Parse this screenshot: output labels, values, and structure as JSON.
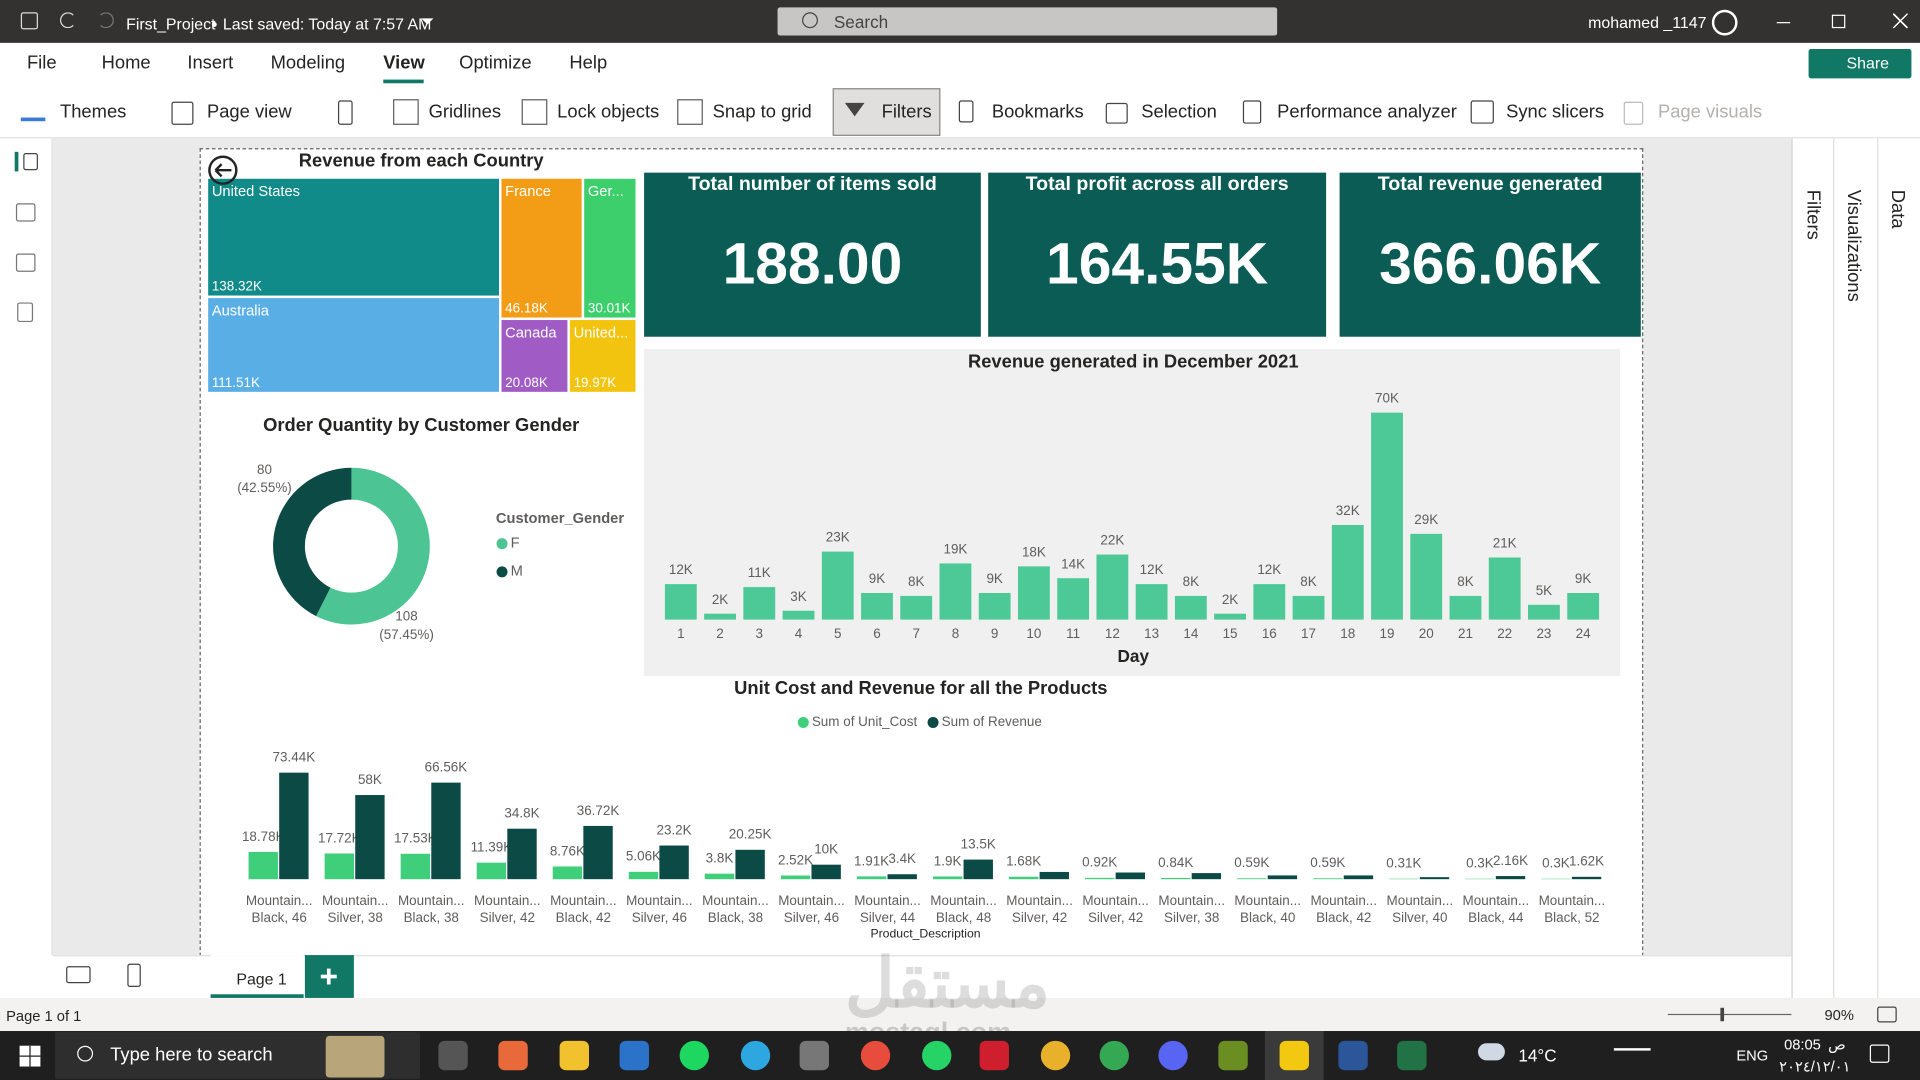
{
  "app": {
    "file_name": "First_Project",
    "last_saved": "Last saved: Today at 7:57 AM",
    "search": "Search",
    "user": "mohamed _1147",
    "menu": [
      "File",
      "Home",
      "Insert",
      "Modeling",
      "View",
      "Optimize",
      "Help"
    ],
    "share": "Share",
    "ribbon": [
      "Themes",
      "Page view",
      "Gridlines",
      "Lock objects",
      "Snap to grid",
      "Filters",
      "Bookmarks",
      "Selection",
      "Performance analyzer",
      "Sync slicers",
      "Page visuals"
    ],
    "panes": [
      "Filters",
      "Visualizations",
      "Data"
    ],
    "page_tab": "Page 1",
    "status": "Page 1 of 1",
    "zoom": "90%",
    "taskbar": {
      "search": "Type here to search",
      "weather": "14°C",
      "language": "ENG",
      "time": "08:05",
      "am_pm": "ص",
      "date": "٢٠٢٤/١٢/٠١"
    },
    "watermark": [
      "مستقل",
      "mostaql.com"
    ]
  },
  "chart_data": [
    {
      "type": "treemap",
      "title": "Revenue from each Country",
      "categories": [
        "United States",
        "Australia",
        "France",
        "Ger...",
        "Canada",
        "United..."
      ],
      "values": [
        138320,
        111510,
        46180,
        30010,
        20080,
        19970
      ],
      "value_labels": [
        "138.32K",
        "111.51K",
        "46.18K",
        "30.01K",
        "20.08K",
        "19.97K"
      ],
      "colors": [
        "#118b8a",
        "#5aaee6",
        "#f39c16",
        "#3ccf6c",
        "#a05cc4",
        "#f2c40f"
      ]
    },
    {
      "type": "card",
      "title": "Total number of items sold",
      "values": [
        188
      ],
      "value_labels": [
        "188.00"
      ],
      "color": "#0b5c55"
    },
    {
      "type": "card",
      "title": "Total profit across all orders",
      "values": [
        164550
      ],
      "value_labels": [
        "164.55K"
      ],
      "color": "#0b5c55"
    },
    {
      "type": "card",
      "title": "Total revenue generated",
      "values": [
        366060
      ],
      "value_labels": [
        "366.06K"
      ],
      "color": "#0b5c55"
    },
    {
      "type": "donut",
      "title": "Order Quantity by Customer Gender",
      "legend_title": "Customer_Gender",
      "categories": [
        "F",
        "M"
      ],
      "values": [
        108,
        80
      ],
      "percent_labels": [
        "(57.45%)",
        "(42.55%)"
      ],
      "colors": [
        "#4cc493",
        "#0b4a45"
      ]
    },
    {
      "type": "bar",
      "title": "Revenue generated in December 2021",
      "x_label": "Day",
      "categories": [
        "1",
        "2",
        "3",
        "4",
        "5",
        "6",
        "7",
        "8",
        "9",
        "10",
        "11",
        "12",
        "13",
        "14",
        "15",
        "16",
        "17",
        "18",
        "19",
        "20",
        "21",
        "22",
        "23",
        "24"
      ],
      "values": [
        12000,
        2000,
        11000,
        3000,
        23000,
        9000,
        8000,
        19000,
        9000,
        18000,
        14000,
        22000,
        12000,
        8000,
        2000,
        12000,
        8000,
        32000,
        70000,
        29000,
        8000,
        21000,
        5000,
        9000
      ],
      "value_labels": [
        "12K",
        "2K",
        "11K",
        "3K",
        "23K",
        "9K",
        "8K",
        "19K",
        "9K",
        "18K",
        "14K",
        "22K",
        "12K",
        "8K",
        "2K",
        "12K",
        "8K",
        "32K",
        "70K",
        "29K",
        "8K",
        "21K",
        "5K",
        "9K"
      ],
      "color": "#4cc996"
    },
    {
      "type": "grouped_bar",
      "title": "Unit Cost and Revenue for all the Products",
      "x_label": "Product_Description",
      "categories": [
        [
          "Mountain...",
          "Black, 46"
        ],
        [
          "Mountain...",
          "Silver, 38"
        ],
        [
          "Mountain...",
          "Black, 38"
        ],
        [
          "Mountain...",
          "Silver, 42"
        ],
        [
          "Mountain...",
          "Black, 42"
        ],
        [
          "Mountain...",
          "Silver, 46"
        ],
        [
          "Mountain...",
          "Black, 38"
        ],
        [
          "Mountain...",
          "Silver, 46"
        ],
        [
          "Mountain...",
          "Silver, 44"
        ],
        [
          "Mountain...",
          "Black, 48"
        ],
        [
          "Mountain...",
          "Silver, 42"
        ],
        [
          "Mountain...",
          "Silver, 42"
        ],
        [
          "Mountain...",
          "Silver, 38"
        ],
        [
          "Mountain...",
          "Black, 40"
        ],
        [
          "Mountain...",
          "Black, 42"
        ],
        [
          "Mountain...",
          "Silver, 40"
        ],
        [
          "Mountain...",
          "Black, 44"
        ],
        [
          "Mountain...",
          "Black, 52"
        ]
      ],
      "series": [
        {
          "name": "Sum of Unit_Cost",
          "color": "#3fce7a",
          "values": [
            18780,
            17720,
            17530,
            11390,
            8760,
            5060,
            3800,
            2520,
            1910,
            1900,
            1680,
            920,
            840,
            590,
            590,
            310,
            300,
            300
          ],
          "value_labels": [
            "18.78K",
            "17.72K",
            "17.53K",
            "11.39K",
            "8.76K",
            "5.06K",
            "3.8K",
            "2.52K",
            "1.91K",
            "1.9K",
            "1.68K",
            "0.92K",
            "0.84K",
            "0.59K",
            "0.59K",
            "0.31K",
            "0.3K",
            "0.3K"
          ]
        },
        {
          "name": "Sum of Revenue",
          "color": "#0b4a45",
          "values": [
            73440,
            58000,
            66560,
            34800,
            36720,
            23200,
            20250,
            10000,
            3400,
            13500,
            5000,
            4600,
            4200,
            2600,
            2600,
            1400,
            2160,
            1620
          ],
          "value_labels": [
            "73.44K",
            "58K",
            "66.56K",
            "34.8K",
            "36.72K",
            "23.2K",
            "20.25K",
            "10K",
            "3.4K",
            "13.5K",
            null,
            null,
            null,
            null,
            null,
            null,
            "2.16K",
            "1.62K"
          ]
        }
      ]
    }
  ]
}
